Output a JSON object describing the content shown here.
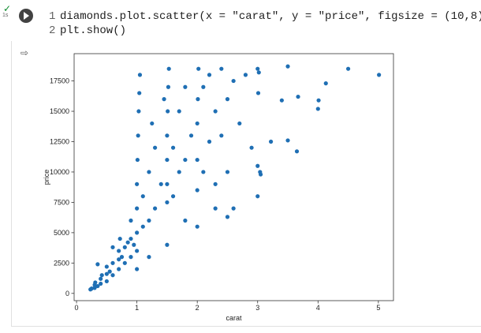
{
  "cell": {
    "exec_time": "1s",
    "lines": [
      {
        "number": "1",
        "text": "diamonds.plot.scatter(x = \"carat\", y = \"price\", figsize = (10,8))"
      },
      {
        "number": "2",
        "text": "plt.show()"
      }
    ]
  },
  "chart_data": {
    "type": "scatter",
    "xlabel": "carat",
    "ylabel": "price",
    "color": "#1f6fb4",
    "x": [
      0.23,
      0.25,
      0.3,
      0.3,
      0.31,
      0.35,
      0.4,
      0.4,
      0.42,
      0.5,
      0.5,
      0.5,
      0.55,
      0.6,
      0.6,
      0.7,
      0.7,
      0.7,
      0.72,
      0.75,
      0.8,
      0.8,
      0.85,
      0.9,
      0.9,
      0.9,
      0.95,
      1.0,
      1.0,
      1.0,
      1.0,
      1.01,
      1.02,
      1.03,
      1.04,
      1.05,
      1.1,
      1.1,
      1.2,
      1.2,
      1.25,
      1.3,
      1.3,
      1.4,
      1.45,
      1.5,
      1.5,
      1.5,
      1.5,
      1.51,
      1.52,
      1.53,
      1.6,
      1.6,
      1.7,
      1.7,
      1.8,
      1.8,
      1.9,
      2.0,
      2.0,
      2.0,
      2.01,
      2.02,
      2.1,
      2.1,
      2.2,
      2.2,
      2.3,
      2.3,
      2.4,
      2.4,
      2.5,
      2.5,
      2.6,
      2.6,
      2.7,
      2.8,
      2.9,
      3.0,
      3.0,
      3.0,
      3.01,
      3.02,
      3.04,
      3.05,
      3.22,
      3.4,
      3.5,
      3.5,
      3.65,
      3.67,
      4.0,
      4.01,
      4.13,
      4.5,
      5.01,
      0.35,
      0.6,
      1.0,
      1.2,
      1.5,
      2.0,
      1.8,
      2.3,
      2.5
    ],
    "values": [
      326,
      400,
      450,
      700,
      900,
      600,
      800,
      1200,
      1500,
      1000,
      1600,
      2200,
      1800,
      1500,
      2500,
      2000,
      2800,
      3500,
      4500,
      3000,
      2500,
      3800,
      4200,
      3000,
      4500,
      6000,
      4000,
      3500,
      5000,
      7000,
      9000,
      11000,
      13000,
      15000,
      16500,
      18000,
      5500,
      8000,
      6000,
      10000,
      14000,
      7000,
      12000,
      9000,
      16000,
      7500,
      9000,
      11000,
      13000,
      15000,
      17000,
      18500,
      8000,
      12000,
      10000,
      15000,
      11000,
      17000,
      13000,
      8500,
      11000,
      14000,
      16000,
      18500,
      10000,
      17000,
      12500,
      18000,
      9000,
      15000,
      13000,
      18500,
      10000,
      16000,
      7000,
      17500,
      14000,
      18000,
      12000,
      8000,
      10500,
      18500,
      16500,
      18200,
      10000,
      9800,
      12500,
      15900,
      12600,
      18700,
      11700,
      16200,
      15200,
      15900,
      17300,
      18500,
      18000,
      2400,
      3800,
      2000,
      3000,
      4000,
      5500,
      6000,
      7000,
      6300
    ],
    "xlim": [
      -0.04,
      5.25
    ],
    "ylim": [
      -598,
      19747
    ],
    "xticks": [
      0,
      1,
      2,
      3,
      4,
      5
    ],
    "yticks": [
      0,
      2500,
      5000,
      7500,
      10000,
      12500,
      15000,
      17500
    ]
  }
}
